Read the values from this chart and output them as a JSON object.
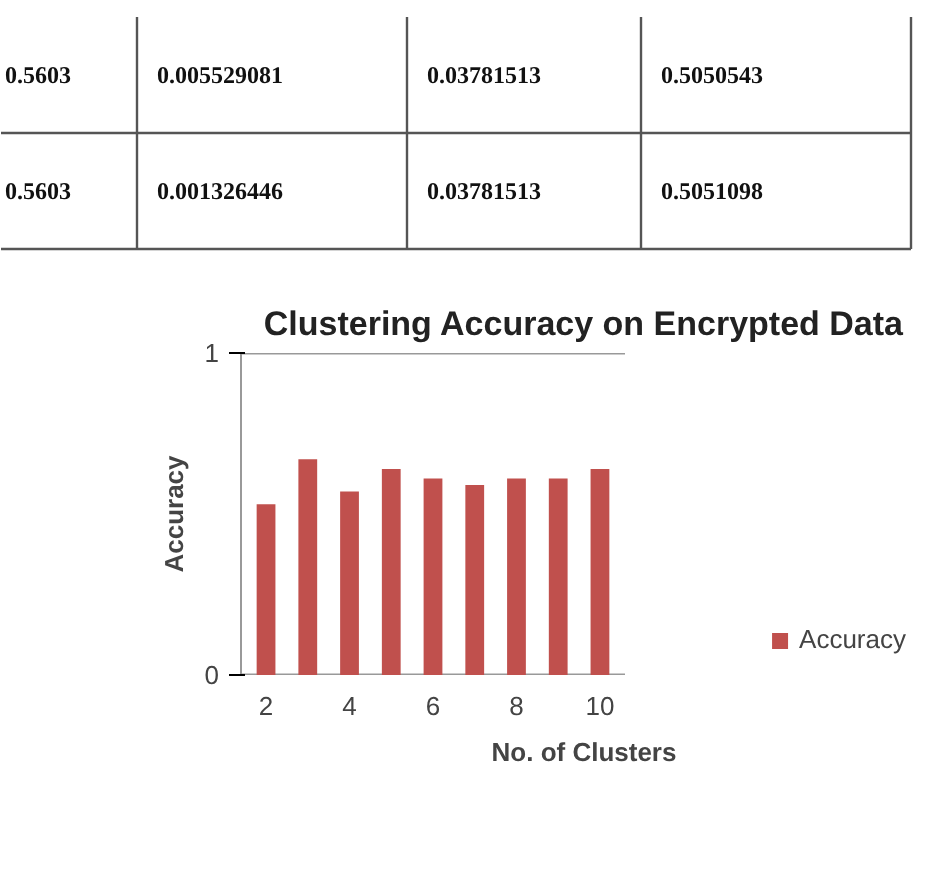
{
  "chart_data": [
    {
      "type": "other",
      "annotations": [
        "0.5603",
        "0.005529081",
        "0.03781513",
        "0.5050543",
        "0.5603",
        "0.001326446",
        "0.03781513",
        "0.5051098"
      ]
    },
    {
      "type": "bar",
      "title": "Clustering Accuracy on Encrypted Data",
      "xlabel": "No. of Clusters",
      "ylabel": "Accuracy",
      "categories": [
        "2",
        null,
        "4",
        null,
        "6",
        null,
        "8",
        null,
        "10"
      ],
      "series": [
        {
          "name": "Accuracy",
          "color": "#c0504d",
          "values": [
            0.53,
            0.67,
            0.57,
            0.64,
            0.61,
            0.59,
            0.61,
            0.61,
            0.64
          ]
        }
      ],
      "ylim": [
        0,
        1
      ],
      "yticks": [
        0,
        1
      ],
      "legend": "right"
    }
  ]
}
